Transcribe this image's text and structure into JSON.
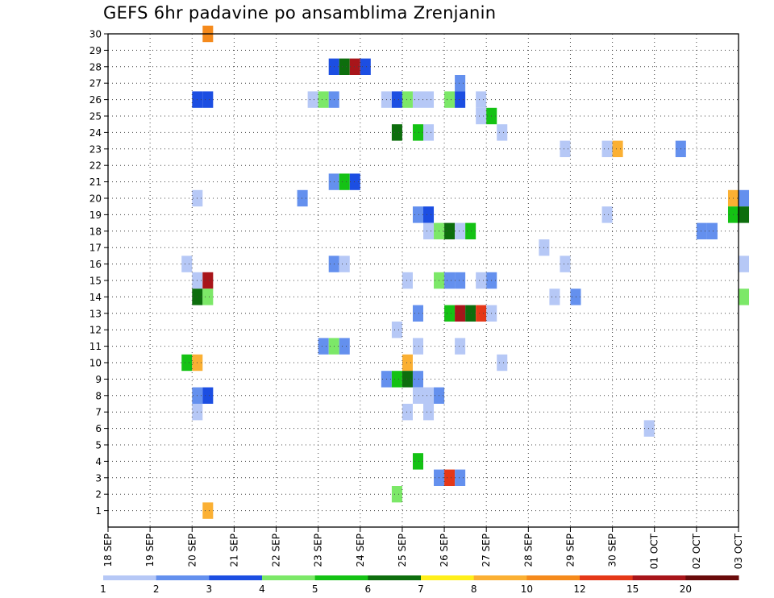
{
  "chart_data": {
    "type": "heatmap",
    "title": "GEFS 6hr padavine po ansamblima Zrenjanin",
    "y_tick_labels": [
      "1",
      "2",
      "3",
      "4",
      "5",
      "6",
      "7",
      "8",
      "9",
      "10",
      "11",
      "12",
      "13",
      "14",
      "15",
      "16",
      "17",
      "18",
      "19",
      "20",
      "21",
      "22",
      "23",
      "24",
      "25",
      "26",
      "27",
      "28",
      "29",
      "30"
    ],
    "x_tick_labels": [
      "18 SEP",
      "19 SEP",
      "20 SEP",
      "21 SEP",
      "22 SEP",
      "23 SEP",
      "24 SEP",
      "25 SEP",
      "26 SEP",
      "27 SEP",
      "28 SEP",
      "29 SEP",
      "30 SEP",
      "01 OCT",
      "02 OCT",
      "03 OCT"
    ],
    "xlim_days": [
      0,
      15
    ],
    "ylim": [
      0,
      30
    ],
    "step": "6hr",
    "grid": "dotted",
    "legend": {
      "placement": "bottom",
      "labels": [
        "1",
        "2",
        "3",
        "4",
        "5",
        "6",
        "7",
        "8",
        "10",
        "12",
        "15",
        "20"
      ],
      "colors": [
        "#b6c8f6",
        "#6490ee",
        "#1c4ee2",
        "#7ce868",
        "#14c214",
        "#0d6e0d",
        "#ffef1a",
        "#fbb033",
        "#f58a1c",
        "#e53818",
        "#a8151a",
        "#6a0b0b"
      ]
    },
    "cell_colors": {
      "c1": "#b6c8f6",
      "c2": "#6490ee",
      "c3": "#1c4ee2",
      "c4": "#7ce868",
      "c5": "#14c214",
      "c6": "#0d6e0d",
      "c8": "#fbb033",
      "c10": "#f58a1c",
      "c15": "#e53818",
      "c20": "#a8151a"
    },
    "cells": [
      {
        "member": 30,
        "t": 9,
        "c": "c10"
      },
      {
        "member": 28,
        "t": 21,
        "c": "c3"
      },
      {
        "member": 28,
        "t": 22,
        "c": "c6"
      },
      {
        "member": 28,
        "t": 23,
        "c": "c20"
      },
      {
        "member": 28,
        "t": 24,
        "c": "c3"
      },
      {
        "member": 27,
        "t": 33,
        "c": "c2"
      },
      {
        "member": 26,
        "t": 8,
        "c": "c3"
      },
      {
        "member": 26,
        "t": 9,
        "c": "c3"
      },
      {
        "member": 26,
        "t": 19,
        "c": "c1"
      },
      {
        "member": 26,
        "t": 20,
        "c": "c4"
      },
      {
        "member": 26,
        "t": 21,
        "c": "c2"
      },
      {
        "member": 26,
        "t": 26,
        "c": "c1"
      },
      {
        "member": 26,
        "t": 27,
        "c": "c3"
      },
      {
        "member": 26,
        "t": 28,
        "c": "c4"
      },
      {
        "member": 26,
        "t": 29,
        "c": "c1"
      },
      {
        "member": 26,
        "t": 30,
        "c": "c1"
      },
      {
        "member": 26,
        "t": 32,
        "c": "c4"
      },
      {
        "member": 26,
        "t": 33,
        "c": "c3"
      },
      {
        "member": 26,
        "t": 35,
        "c": "c1"
      },
      {
        "member": 25,
        "t": 35,
        "c": "c1"
      },
      {
        "member": 25,
        "t": 36,
        "c": "c5"
      },
      {
        "member": 24,
        "t": 27,
        "c": "c6"
      },
      {
        "member": 24,
        "t": 29,
        "c": "c5"
      },
      {
        "member": 24,
        "t": 30,
        "c": "c1"
      },
      {
        "member": 24,
        "t": 37,
        "c": "c1"
      },
      {
        "member": 23,
        "t": 43,
        "c": "c1"
      },
      {
        "member": 23,
        "t": 47,
        "c": "c1"
      },
      {
        "member": 23,
        "t": 48,
        "c": "c8"
      },
      {
        "member": 23,
        "t": 54,
        "c": "c2"
      },
      {
        "member": 21,
        "t": 21,
        "c": "c2"
      },
      {
        "member": 21,
        "t": 22,
        "c": "c5"
      },
      {
        "member": 21,
        "t": 23,
        "c": "c3"
      },
      {
        "member": 20,
        "t": 8,
        "c": "c1"
      },
      {
        "member": 20,
        "t": 18,
        "c": "c2"
      },
      {
        "member": 20,
        "t": 59,
        "c": "c8"
      },
      {
        "member": 20,
        "t": 60,
        "c": "c2"
      },
      {
        "member": 19,
        "t": 29,
        "c": "c2"
      },
      {
        "member": 19,
        "t": 30,
        "c": "c3"
      },
      {
        "member": 19,
        "t": 47,
        "c": "c1"
      },
      {
        "member": 19,
        "t": 59,
        "c": "c5"
      },
      {
        "member": 19,
        "t": 60,
        "c": "c6"
      },
      {
        "member": 18,
        "t": 30,
        "c": "c1"
      },
      {
        "member": 18,
        "t": 31,
        "c": "c4"
      },
      {
        "member": 18,
        "t": 32,
        "c": "c6"
      },
      {
        "member": 18,
        "t": 33,
        "c": "c1"
      },
      {
        "member": 18,
        "t": 34,
        "c": "c5"
      },
      {
        "member": 18,
        "t": 56,
        "c": "c2"
      },
      {
        "member": 18,
        "t": 57,
        "c": "c2"
      },
      {
        "member": 17,
        "t": 41,
        "c": "c1"
      },
      {
        "member": 16,
        "t": 7,
        "c": "c1"
      },
      {
        "member": 16,
        "t": 21,
        "c": "c2"
      },
      {
        "member": 16,
        "t": 22,
        "c": "c1"
      },
      {
        "member": 16,
        "t": 43,
        "c": "c1"
      },
      {
        "member": 16,
        "t": 60,
        "c": "c1"
      },
      {
        "member": 15,
        "t": 8,
        "c": "c1"
      },
      {
        "member": 15,
        "t": 9,
        "c": "c20"
      },
      {
        "member": 15,
        "t": 28,
        "c": "c1"
      },
      {
        "member": 15,
        "t": 31,
        "c": "c4"
      },
      {
        "member": 15,
        "t": 32,
        "c": "c2"
      },
      {
        "member": 15,
        "t": 33,
        "c": "c2"
      },
      {
        "member": 15,
        "t": 35,
        "c": "c1"
      },
      {
        "member": 15,
        "t": 36,
        "c": "c2"
      },
      {
        "member": 14,
        "t": 8,
        "c": "c6"
      },
      {
        "member": 14,
        "t": 9,
        "c": "c4"
      },
      {
        "member": 14,
        "t": 42,
        "c": "c1"
      },
      {
        "member": 14,
        "t": 44,
        "c": "c2"
      },
      {
        "member": 14,
        "t": 60,
        "c": "c4"
      },
      {
        "member": 13,
        "t": 29,
        "c": "c2"
      },
      {
        "member": 13,
        "t": 32,
        "c": "c5"
      },
      {
        "member": 13,
        "t": 33,
        "c": "c20"
      },
      {
        "member": 13,
        "t": 34,
        "c": "c6"
      },
      {
        "member": 13,
        "t": 35,
        "c": "c15"
      },
      {
        "member": 13,
        "t": 36,
        "c": "c1"
      },
      {
        "member": 12,
        "t": 27,
        "c": "c1"
      },
      {
        "member": 11,
        "t": 20,
        "c": "c2"
      },
      {
        "member": 11,
        "t": 21,
        "c": "c4"
      },
      {
        "member": 11,
        "t": 22,
        "c": "c2"
      },
      {
        "member": 11,
        "t": 29,
        "c": "c1"
      },
      {
        "member": 11,
        "t": 33,
        "c": "c1"
      },
      {
        "member": 10,
        "t": 7,
        "c": "c5"
      },
      {
        "member": 10,
        "t": 8,
        "c": "c8"
      },
      {
        "member": 10,
        "t": 28,
        "c": "c8"
      },
      {
        "member": 10,
        "t": 37,
        "c": "c1"
      },
      {
        "member": 9,
        "t": 26,
        "c": "c2"
      },
      {
        "member": 9,
        "t": 27,
        "c": "c5"
      },
      {
        "member": 9,
        "t": 28,
        "c": "c6"
      },
      {
        "member": 9,
        "t": 29,
        "c": "c2"
      },
      {
        "member": 8,
        "t": 8,
        "c": "c2"
      },
      {
        "member": 8,
        "t": 9,
        "c": "c3"
      },
      {
        "member": 8,
        "t": 29,
        "c": "c1"
      },
      {
        "member": 8,
        "t": 30,
        "c": "c1"
      },
      {
        "member": 8,
        "t": 31,
        "c": "c2"
      },
      {
        "member": 7,
        "t": 8,
        "c": "c1"
      },
      {
        "member": 7,
        "t": 28,
        "c": "c1"
      },
      {
        "member": 7,
        "t": 30,
        "c": "c1"
      },
      {
        "member": 6,
        "t": 51,
        "c": "c1"
      },
      {
        "member": 4,
        "t": 29,
        "c": "c5"
      },
      {
        "member": 3,
        "t": 31,
        "c": "c2"
      },
      {
        "member": 3,
        "t": 32,
        "c": "c15"
      },
      {
        "member": 3,
        "t": 33,
        "c": "c2"
      },
      {
        "member": 2,
        "t": 27,
        "c": "c4"
      },
      {
        "member": 1,
        "t": 9,
        "c": "c8"
      }
    ]
  }
}
